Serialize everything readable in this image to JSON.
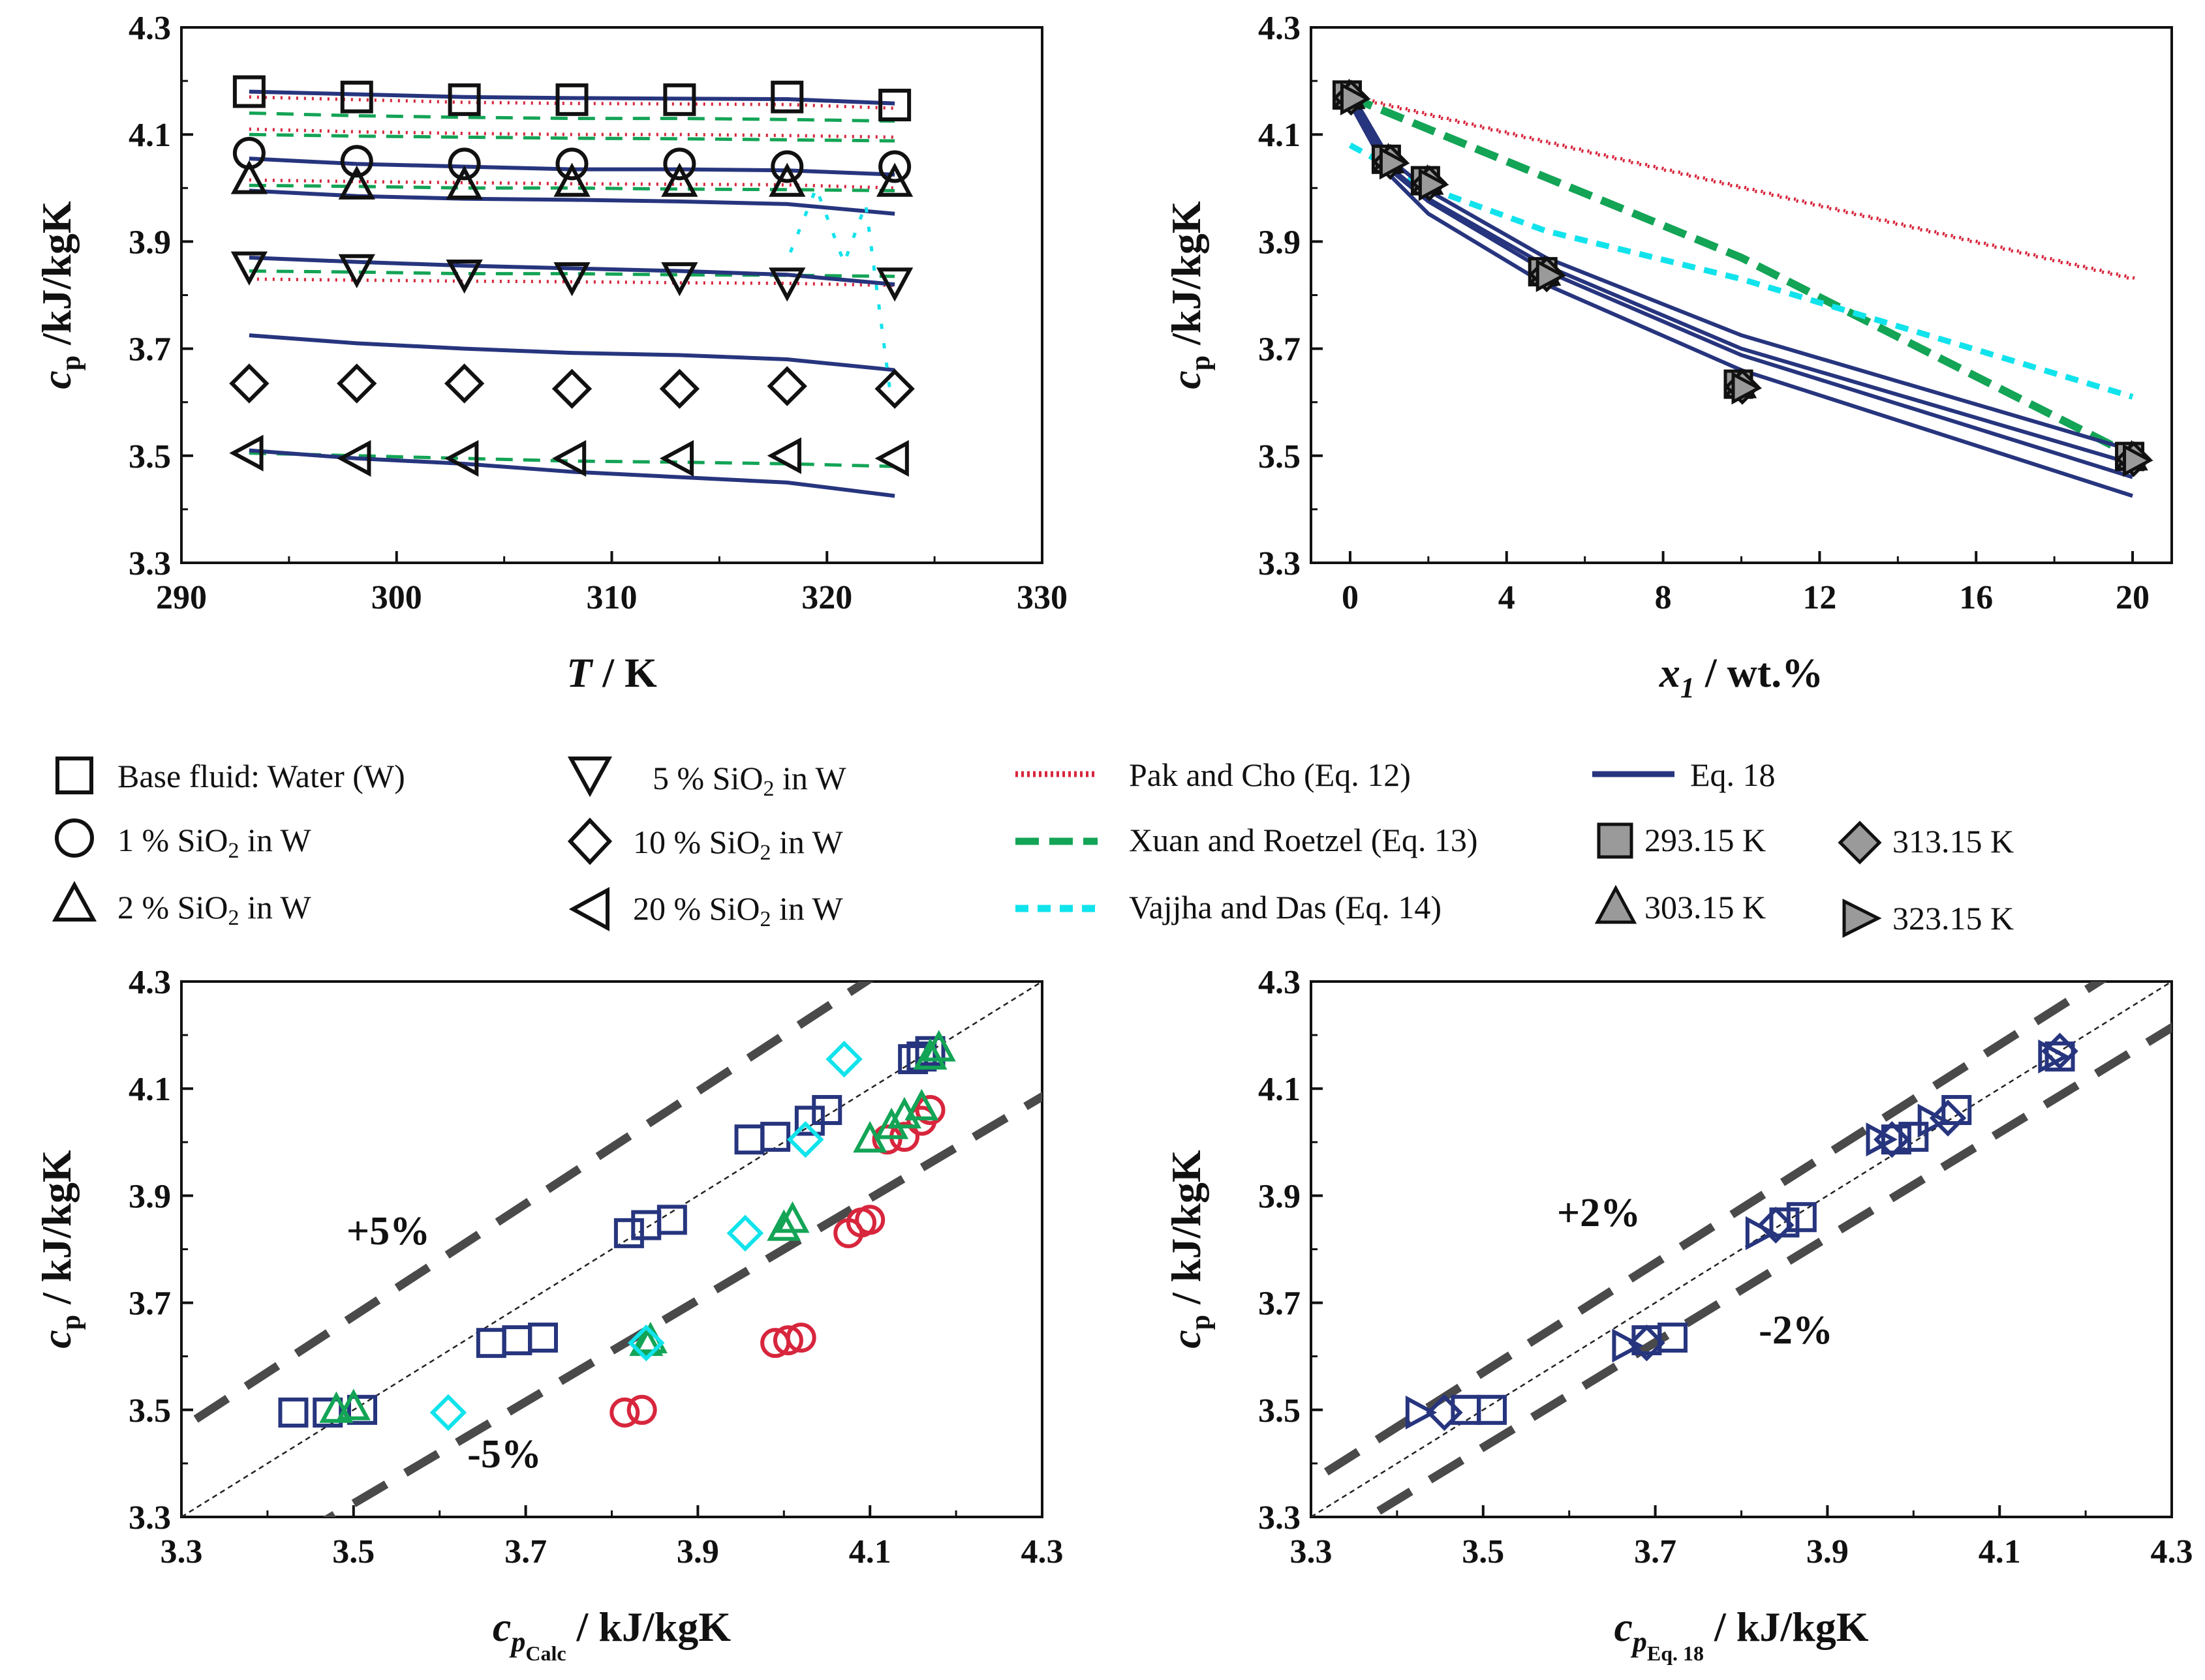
{
  "colors": {
    "eq18": "#27357e",
    "pak": "#d7263d",
    "xuan": "#13a456",
    "vajjha": "#11e3ec",
    "guide": "#4a4a4a",
    "gray": "#9a9a9a"
  },
  "chart_data": [
    {
      "type": "line",
      "title": "",
      "xlabel_main": "T",
      "xlabel_rest": " / K",
      "ylabel_main": "c",
      "ylabel_sub": "p",
      "ylabel_rest": " /kJ/kgK",
      "xlim": [
        290,
        330
      ],
      "ylim": [
        3.3,
        4.3
      ],
      "xticks": [
        "290",
        "300",
        "310",
        "320",
        "330"
      ],
      "yticks": [
        "3.3",
        "3.5",
        "3.7",
        "3.9",
        "4.1",
        "4.3"
      ],
      "x": [
        293.15,
        298.15,
        303.15,
        308.15,
        313.15,
        318.15,
        323.15
      ],
      "series": [
        {
          "name": "Base fluid: Water (W)",
          "marker": "square",
          "values": [
            4.18,
            4.17,
            4.165,
            4.165,
            4.165,
            4.17,
            4.155
          ],
          "eq18": [
            4.18,
            4.175,
            4.17,
            4.168,
            4.167,
            4.166,
            4.158
          ],
          "pak": [
            4.17,
            4.165,
            4.16,
            4.158,
            4.157,
            4.156,
            4.149
          ],
          "xuan": [
            4.14,
            4.135,
            4.132,
            4.13,
            4.13,
            4.128,
            4.125
          ]
        },
        {
          "name": "1 % SiO2 in W",
          "marker": "circle",
          "values": [
            4.065,
            4.05,
            4.045,
            4.045,
            4.045,
            4.04,
            4.04
          ],
          "eq18": [
            4.055,
            4.045,
            4.04,
            4.035,
            4.035,
            4.033,
            4.025
          ],
          "pak": [
            4.11,
            4.105,
            4.102,
            4.1,
            4.1,
            4.098,
            4.095
          ],
          "xuan": [
            4.1,
            4.097,
            4.095,
            4.093,
            4.092,
            4.09,
            4.088
          ]
        },
        {
          "name": "2 % SiO2 in W",
          "marker": "triangle-up",
          "values": [
            4.015,
            4.005,
            4.005,
            4.01,
            4.01,
            4.01,
            4.01
          ],
          "eq18": [
            3.995,
            3.985,
            3.98,
            3.978,
            3.975,
            3.97,
            3.952
          ],
          "pak": [
            4.015,
            4.012,
            4.01,
            4.008,
            4.007,
            4.006,
            4.0
          ],
          "xuan": [
            4.005,
            4.003,
            4.0,
            4.0,
            3.998,
            3.997,
            3.995
          ]
        },
        {
          "name": "5 % SiO2 in W",
          "marker": "triangle-down",
          "values": [
            3.855,
            3.85,
            3.84,
            3.835,
            3.835,
            3.825,
            3.825
          ],
          "eq18": [
            3.87,
            3.862,
            3.855,
            3.85,
            3.845,
            3.838,
            3.82
          ],
          "pak": [
            3.83,
            3.828,
            3.826,
            3.825,
            3.823,
            3.822,
            3.818
          ],
          "xuan": [
            3.845,
            3.843,
            3.84,
            3.84,
            3.838,
            3.837,
            3.835
          ]
        },
        {
          "name": "10 % SiO2 in W",
          "marker": "diamond",
          "values": [
            3.635,
            3.635,
            3.635,
            3.625,
            3.625,
            3.63,
            3.625
          ],
          "eq18": [
            3.725,
            3.71,
            3.7,
            3.692,
            3.688,
            3.68,
            3.66
          ],
          "pak": [],
          "xuan": []
        },
        {
          "name": "20 % SiO2 in W",
          "marker": "triangle-left",
          "values": [
            3.505,
            3.495,
            3.495,
            3.495,
            3.495,
            3.5,
            3.495
          ],
          "eq18": [
            3.51,
            3.495,
            3.485,
            3.47,
            3.46,
            3.45,
            3.425
          ],
          "pak": [],
          "xuan": [
            3.505,
            3.5,
            3.495,
            3.49,
            3.488,
            3.485,
            3.48
          ]
        }
      ],
      "vajjha_fragment": {
        "x": [
          318.3,
          319.5,
          320.8,
          321.8,
          323.0
        ],
        "y": [
          3.88,
          4.0,
          3.86,
          3.97,
          3.6
        ]
      }
    },
    {
      "type": "line",
      "title": "",
      "xlabel_main": "x",
      "xlabel_sub": "1",
      "xlabel_rest": " / wt.%",
      "ylabel_main": "c",
      "ylabel_sub": "p",
      "ylabel_rest": " /kJ/kgK",
      "xlim": [
        -1,
        21
      ],
      "ylim": [
        3.3,
        4.3
      ],
      "xticks": [
        "0",
        "4",
        "8",
        "12",
        "16",
        "20"
      ],
      "yticks": [
        "3.3",
        "3.5",
        "3.7",
        "3.9",
        "4.1",
        "4.3"
      ],
      "x": [
        0,
        1,
        2,
        5,
        10,
        20
      ],
      "series": [
        {
          "name": "Eq. 18 (293.15 K)",
          "values": [
            4.18,
            4.055,
            3.995,
            3.87,
            3.725,
            3.51
          ]
        },
        {
          "name": "Eq. 18 (303.15 K)",
          "values": [
            4.17,
            4.04,
            3.98,
            3.855,
            3.7,
            3.485
          ]
        },
        {
          "name": "Eq. 18 (313.15 K)",
          "values": [
            4.167,
            4.035,
            3.975,
            3.845,
            3.688,
            3.46
          ]
        },
        {
          "name": "Eq. 18 (323.15 K)",
          "values": [
            4.158,
            4.025,
            3.952,
            3.82,
            3.66,
            3.425
          ]
        },
        {
          "name": "Pak and Cho (Eq. 12)",
          "x": [
            0,
            20
          ],
          "values": [
            4.17,
            3.83
          ]
        },
        {
          "name": "Xuan and Roetzel (Eq. 13)",
          "x": [
            0,
            1,
            2,
            5,
            10,
            20
          ],
          "values": [
            4.17,
            4.14,
            4.11,
            4.02,
            3.87,
            3.5
          ]
        },
        {
          "name": "Vajjha and Das (Eq. 14)",
          "x": [
            0,
            2,
            5,
            10,
            20
          ],
          "values": [
            4.08,
            4.0,
            3.92,
            3.83,
            3.61
          ]
        }
      ],
      "measured_markers": [
        {
          "x": 0,
          "y": 4.17
        },
        {
          "x": 1,
          "y": 4.05
        },
        {
          "x": 2,
          "y": 4.01
        },
        {
          "x": 5,
          "y": 3.84
        },
        {
          "x": 10,
          "y": 3.63
        },
        {
          "x": 20,
          "y": 3.495
        }
      ]
    },
    {
      "type": "scatter",
      "title": "",
      "xlabel_main": "c",
      "xlabel_sub": "p",
      "xlabel_subsub": "Calc",
      "xlabel_rest": " / kJ/kgK",
      "ylabel_main": "c",
      "ylabel_sub": "p",
      "ylabel_rest": " / kJ/kgK",
      "xlim": [
        3.3,
        4.3
      ],
      "ylim": [
        3.3,
        4.3
      ],
      "xticks": [
        "3.3",
        "3.5",
        "3.7",
        "3.9",
        "4.1",
        "4.3"
      ],
      "yticks": [
        "3.3",
        "3.5",
        "3.7",
        "3.9",
        "4.1",
        "4.3"
      ],
      "band_pct": 5,
      "annotations": [
        "+5%",
        "-5%"
      ],
      "series": [
        {
          "name": "Eq. 18",
          "marker": "square",
          "color": "eq18",
          "points": [
            [
              3.43,
              3.495
            ],
            [
              3.47,
              3.495
            ],
            [
              3.51,
              3.5
            ],
            [
              3.66,
              3.625
            ],
            [
              3.69,
              3.63
            ],
            [
              3.72,
              3.635
            ],
            [
              3.82,
              3.83
            ],
            [
              3.84,
              3.845
            ],
            [
              3.87,
              3.855
            ],
            [
              3.96,
              4.005
            ],
            [
              3.99,
              4.01
            ],
            [
              4.03,
              4.04
            ],
            [
              4.05,
              4.06
            ],
            [
              4.15,
              4.155
            ],
            [
              4.16,
              4.16
            ],
            [
              4.17,
              4.17
            ]
          ]
        },
        {
          "name": "Pak and Cho",
          "marker": "circle",
          "color": "pak",
          "points": [
            [
              3.815,
              3.495
            ],
            [
              3.835,
              3.5
            ],
            [
              3.99,
              3.625
            ],
            [
              4.005,
              3.63
            ],
            [
              4.02,
              3.635
            ],
            [
              4.075,
              3.83
            ],
            [
              4.09,
              3.85
            ],
            [
              4.1,
              3.855
            ],
            [
              4.12,
              4.005
            ],
            [
              4.14,
              4.01
            ],
            [
              4.16,
              4.04
            ],
            [
              4.17,
              4.06
            ]
          ]
        },
        {
          "name": "Xuan and Roetzel",
          "marker": "triangle-up",
          "color": "xuan",
          "points": [
            [
              3.48,
              3.5
            ],
            [
              3.5,
              3.505
            ],
            [
              3.84,
              3.625
            ],
            [
              3.845,
              3.63
            ],
            [
              4.0,
              3.84
            ],
            [
              4.01,
              3.855
            ],
            [
              4.1,
              4.005
            ],
            [
              4.125,
              4.03
            ],
            [
              4.14,
              4.05
            ],
            [
              4.16,
              4.065
            ],
            [
              4.17,
              4.16
            ],
            [
              4.18,
              4.175
            ]
          ]
        },
        {
          "name": "Vajjha and Das",
          "marker": "diamond",
          "color": "vajjha",
          "points": [
            [
              3.61,
              3.495
            ],
            [
              3.84,
              3.625
            ],
            [
              3.955,
              3.83
            ],
            [
              4.025,
              4.005
            ],
            [
              4.07,
              4.155
            ]
          ]
        }
      ]
    },
    {
      "type": "scatter",
      "title": "",
      "xlabel_main": "c",
      "xlabel_sub": "p",
      "xlabel_subsub": "Eq. 18",
      "xlabel_rest": " / kJ/kgK",
      "ylabel_main": "c",
      "ylabel_sub": "p",
      "ylabel_rest": " / kJ/kgK",
      "xlim": [
        3.3,
        4.3
      ],
      "ylim": [
        3.3,
        4.3
      ],
      "xticks": [
        "3.3",
        "3.5",
        "3.7",
        "3.9",
        "4.1",
        "4.3"
      ],
      "yticks": [
        "3.3",
        "3.5",
        "3.7",
        "3.9",
        "4.1",
        "4.3"
      ],
      "band_pct": 2,
      "annotations": [
        "+2%",
        "-2%"
      ],
      "series": [
        {
          "name": "Eq. 18 markers",
          "marker": "square",
          "color": "eq18",
          "points": [
            [
              3.48,
              3.5
            ],
            [
              3.51,
              3.5
            ],
            [
              3.69,
              3.63
            ],
            [
              3.72,
              3.635
            ],
            [
              3.85,
              3.85
            ],
            [
              3.87,
              3.86
            ],
            [
              3.98,
              4.005
            ],
            [
              4.0,
              4.01
            ],
            [
              4.05,
              4.06
            ],
            [
              4.17,
              4.16
            ]
          ]
        },
        {
          "name": "Eq. 18 diamonds",
          "marker": "diamond",
          "color": "eq18",
          "points": [
            [
              3.455,
              3.495
            ],
            [
              3.69,
              3.625
            ],
            [
              3.84,
              3.845
            ],
            [
              3.975,
              4.005
            ],
            [
              4.04,
              4.045
            ],
            [
              4.17,
              4.17
            ]
          ]
        },
        {
          "name": "Eq. 18 right triangles",
          "marker": "triangle-right",
          "color": "eq18",
          "points": [
            [
              3.425,
              3.495
            ],
            [
              3.665,
              3.62
            ],
            [
              3.82,
              3.83
            ],
            [
              3.96,
              4.005
            ],
            [
              4.02,
              4.04
            ],
            [
              4.16,
              4.16
            ]
          ]
        }
      ]
    }
  ],
  "legend": {
    "col1": [
      "Base fluid: Water (W)",
      "1 % SiO",
      "2 % SiO"
    ],
    "col1_sub_tail": [
      "",
      "2",
      "2"
    ],
    "col1_tail": [
      "",
      " in W",
      " in W"
    ],
    "col2_pre": [
      "5 % SiO",
      "10 % SiO",
      "20 % SiO"
    ],
    "col2_sub": [
      "2",
      "2",
      "2"
    ],
    "col2_tail": [
      " in W",
      " in W",
      " in W"
    ],
    "col3": [
      "Pak and Cho (Eq. 12)",
      "Xuan and Roetzel (Eq. 13)",
      "Vajjha and Das (Eq. 14)"
    ],
    "col4": [
      "Eq. 18",
      "293.15 K",
      "303.15 K"
    ],
    "col5": [
      "313.15 K",
      "323.15 K"
    ]
  }
}
